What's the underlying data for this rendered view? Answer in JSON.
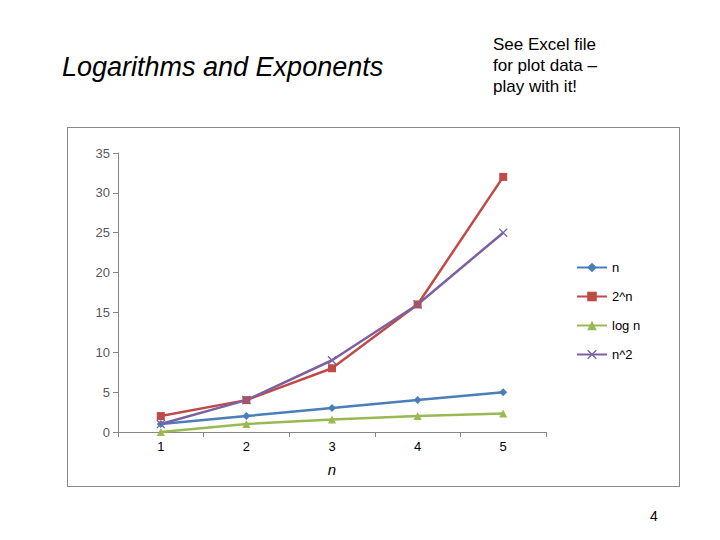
{
  "chart_data": {
    "type": "line",
    "title": "Logarithms and Exponents",
    "annotations": [
      "See Excel file\nfor plot data –\nplay with it!",
      "4"
    ],
    "x_label": "n",
    "categories": [
      "1",
      "2",
      "3",
      "4",
      "5"
    ],
    "series": [
      {
        "name": "n",
        "color": "#4a7ebb",
        "marker": "diamond",
        "values": [
          1,
          2,
          3,
          4,
          5
        ]
      },
      {
        "name": "2^n",
        "color": "#be4b48",
        "marker": "square",
        "values": [
          2,
          4,
          8,
          16,
          32
        ]
      },
      {
        "name": "log n",
        "color": "#98b954",
        "marker": "triangle",
        "values": [
          0,
          1,
          1.58,
          2,
          2.32
        ]
      },
      {
        "name": "n^2",
        "color": "#7d60a0",
        "marker": "x",
        "values": [
          1,
          4,
          9,
          16,
          25
        ]
      }
    ],
    "ylim": [
      0,
      35
    ],
    "yticks": [
      0,
      5,
      10,
      15,
      20,
      25,
      30,
      35
    ],
    "grid": false,
    "legend": "right"
  }
}
